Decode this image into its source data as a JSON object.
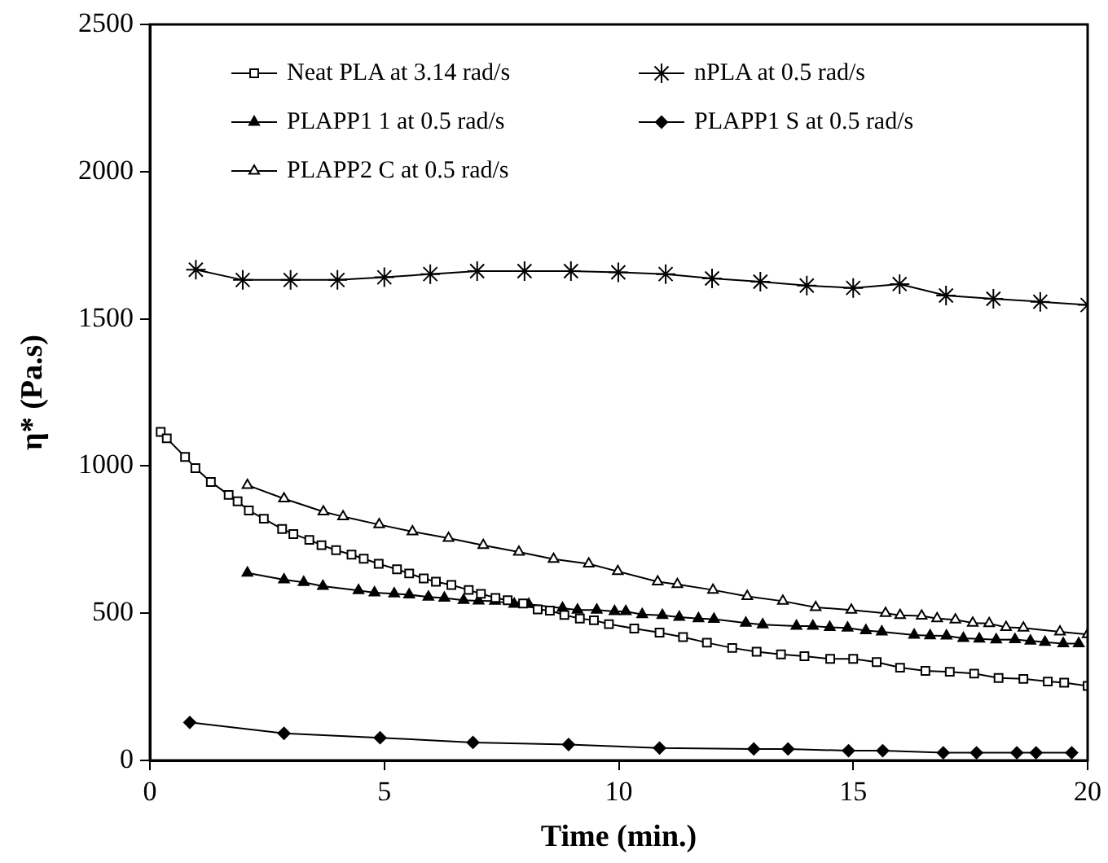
{
  "chart_data": {
    "type": "line",
    "xlabel": "Time (min.)",
    "ylabel": "η* (Pa.s)",
    "xlim": [
      0,
      20
    ],
    "xticks": [
      0,
      5,
      10,
      15,
      20
    ],
    "ylim": [
      0,
      2500
    ],
    "yticks": [
      0,
      500,
      1000,
      1500,
      2000,
      2500
    ],
    "grid": false,
    "legend": "top",
    "line_style": "solid",
    "series": [
      {
        "name": "Neat PLA at 3.14 rad/s",
        "color": "#000000",
        "marker": "square",
        "x": [
          0.23,
          0.36,
          0.75,
          0.97,
          1.3,
          1.68,
          1.87,
          2.11,
          2.43,
          2.82,
          3.06,
          3.4,
          3.66,
          3.97,
          4.3,
          4.56,
          4.88,
          5.27,
          5.53,
          5.84,
          6.1,
          6.43,
          6.8,
          7.06,
          7.37,
          7.63,
          7.96,
          8.27,
          8.53,
          8.84,
          9.17,
          9.47,
          9.79,
          10.33,
          10.87,
          11.37,
          11.88,
          12.42,
          12.94,
          13.46,
          13.96,
          14.51,
          15.0,
          15.5,
          16.0,
          16.54,
          17.06,
          17.58,
          18.1,
          18.63,
          19.15,
          19.5,
          20
        ],
        "values": [
          1116,
          1094,
          1031,
          993,
          946,
          902,
          880,
          849,
          821,
          786,
          769,
          749,
          731,
          714,
          699,
          685,
          668,
          649,
          635,
          618,
          607,
          596,
          579,
          566,
          552,
          544,
          533,
          513,
          509,
          494,
          482,
          476,
          463,
          448,
          434,
          419,
          400,
          382,
          369,
          360,
          354,
          345,
          345,
          334,
          315,
          304,
          301,
          295,
          280,
          277,
          268,
          264,
          253
        ]
      },
      {
        "name": "nPLA at 0.5 rad/s",
        "color": "#000000",
        "marker": "cross",
        "x": [
          0.98,
          1.98,
          3,
          4,
          5,
          5.98,
          6.98,
          7.99,
          8.98,
          9.99,
          11,
          11.99,
          13.02,
          14.01,
          15,
          15.99,
          16.98,
          17.99,
          18.99,
          20
        ],
        "values": [
          1667,
          1632,
          1632,
          1632,
          1641,
          1652,
          1662,
          1662,
          1662,
          1658,
          1652,
          1637,
          1626,
          1613,
          1605,
          1618,
          1579,
          1568,
          1558,
          1547
        ]
      },
      {
        "name": "PLAPP1 1 at 0.5 rad/s",
        "color": "#000000",
        "marker": "triangle",
        "x": [
          2.08,
          2.86,
          3.28,
          3.69,
          4.45,
          4.79,
          5.21,
          5.53,
          5.94,
          6.28,
          6.69,
          7.01,
          7.36,
          7.77,
          8.08,
          8.8,
          9.12,
          9.53,
          9.91,
          10.15,
          10.5,
          10.93,
          11.29,
          11.7,
          12.03,
          12.71,
          13.07,
          13.79,
          14.14,
          14.5,
          14.88,
          15.27,
          15.61,
          16.3,
          16.64,
          16.99,
          17.35,
          17.69,
          18.05,
          18.45,
          18.78,
          19.09,
          19.48,
          19.81
        ],
        "values": [
          637,
          614,
          605,
          592,
          577,
          570,
          566,
          563,
          555,
          552,
          544,
          542,
          541,
          531,
          530,
          517,
          511,
          511,
          506,
          506,
          496,
          493,
          487,
          482,
          480,
          467,
          461,
          456,
          456,
          452,
          450,
          441,
          437,
          426,
          424,
          423,
          415,
          413,
          410,
          411,
          406,
          402,
          397,
          397
        ]
      },
      {
        "name": "PLAPP1 S at 0.5 rad/s",
        "color": "#000000",
        "marker": "diamond",
        "x": [
          0.85,
          2.86,
          4.91,
          6.89,
          8.93,
          10.87,
          12.88,
          13.61,
          14.9,
          15.63,
          16.92,
          17.63,
          18.49,
          18.9,
          19.66
        ],
        "values": [
          129,
          92,
          77,
          61,
          54,
          42,
          39,
          39,
          33,
          33,
          26,
          26,
          26,
          26,
          26
        ]
      },
      {
        "name": "PLAPP2 C at 0.5 rad/s",
        "color": "#000000",
        "marker": "triangle",
        "x": [
          2.08,
          2.86,
          3.7,
          4.12,
          4.89,
          5.6,
          6.37,
          7.11,
          7.87,
          8.61,
          9.36,
          9.98,
          10.83,
          11.25,
          12.01,
          12.74,
          13.5,
          14.2,
          14.96,
          15.69,
          16.0,
          16.46,
          16.79,
          17.18,
          17.55,
          17.9,
          18.26,
          18.63,
          19.41,
          20
        ],
        "values": [
          935,
          889,
          845,
          828,
          801,
          777,
          755,
          731,
          708,
          684,
          668,
          642,
          607,
          598,
          579,
          557,
          541,
          520,
          511,
          500,
          493,
          491,
          482,
          478,
          467,
          465,
          452,
          450,
          437,
          428
        ]
      }
    ]
  }
}
